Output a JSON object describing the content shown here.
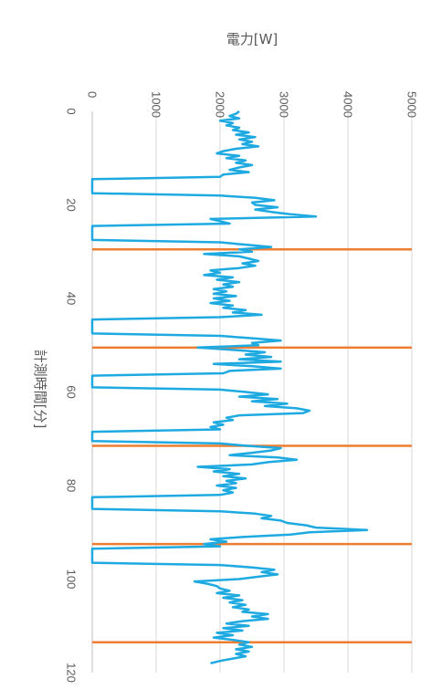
{
  "chart_data": {
    "type": "line",
    "xlabel": "計測時間[分]",
    "ylabel": "電力[W]",
    "xlim": [
      0,
      120
    ],
    "ylim": [
      0,
      5000
    ],
    "x_ticks": [
      0,
      20,
      40,
      60,
      80,
      100,
      120
    ],
    "y_ticks": [
      0,
      1000,
      2000,
      3000,
      4000,
      5000
    ],
    "grid": true,
    "orientation": "rotated-90-clockwise",
    "colors": {
      "series": "#1EAAE1",
      "markers": "#ED7D31",
      "grid": "#D9D9D9",
      "axis": "#BFBFBF"
    },
    "series": [
      {
        "points": [
          [
            0,
            2300
          ],
          [
            0.5,
            2250
          ],
          [
            1,
            2150
          ],
          [
            1.5,
            2300
          ],
          [
            2,
            2000
          ],
          [
            2.5,
            2200
          ],
          [
            3,
            2100
          ],
          [
            3.5,
            2300
          ],
          [
            4,
            2200
          ],
          [
            4.5,
            2450
          ],
          [
            5,
            2250
          ],
          [
            5.5,
            2550
          ],
          [
            6,
            2300
          ],
          [
            6.5,
            2500
          ],
          [
            7,
            2350
          ],
          [
            7.5,
            2600
          ],
          [
            8,
            2250
          ],
          [
            8.5,
            2050
          ],
          [
            9,
            1950
          ],
          [
            9.5,
            2300
          ],
          [
            10,
            2100
          ],
          [
            10.5,
            2400
          ],
          [
            11,
            2250
          ],
          [
            11.5,
            2500
          ],
          [
            12,
            2300
          ],
          [
            12.5,
            2150
          ],
          [
            13,
            2450
          ],
          [
            13.5,
            2050
          ],
          [
            14,
            2000
          ],
          [
            14.5,
            0
          ],
          [
            17.5,
            0
          ],
          [
            18,
            2000
          ],
          [
            18.5,
            2550
          ],
          [
            19,
            2850
          ],
          [
            19.5,
            2500
          ],
          [
            20,
            2550
          ],
          [
            20.5,
            2900
          ],
          [
            21,
            2550
          ],
          [
            21.5,
            2800
          ],
          [
            22,
            3100
          ],
          [
            22.5,
            3500
          ],
          [
            23,
            1850
          ],
          [
            23.5,
            2000
          ],
          [
            24,
            2150
          ],
          [
            24.5,
            0
          ],
          [
            27.5,
            0
          ],
          [
            28,
            2000
          ],
          [
            28.5,
            2400
          ],
          [
            29,
            2800
          ],
          [
            29.5,
            2300
          ],
          [
            30,
            2500
          ],
          [
            30.5,
            1750
          ],
          [
            31,
            2300
          ],
          [
            31.5,
            2450
          ],
          [
            32,
            2600
          ],
          [
            32.5,
            2350
          ],
          [
            33,
            2550
          ],
          [
            33.5,
            2300
          ],
          [
            34,
            1850
          ],
          [
            34.5,
            2000
          ],
          [
            35,
            1750
          ],
          [
            35.5,
            2200
          ],
          [
            36,
            1950
          ],
          [
            36.5,
            2300
          ],
          [
            37,
            2050
          ],
          [
            37.5,
            2200
          ],
          [
            38,
            1900
          ],
          [
            38.5,
            2100
          ],
          [
            39,
            1900
          ],
          [
            39.5,
            2250
          ],
          [
            40,
            1900
          ],
          [
            40.5,
            2150
          ],
          [
            41,
            1850
          ],
          [
            41.5,
            2200
          ],
          [
            42,
            2050
          ],
          [
            42.5,
            2400
          ],
          [
            43,
            2200
          ],
          [
            43.5,
            2650
          ],
          [
            44,
            2000
          ],
          [
            44.5,
            0
          ],
          [
            47.5,
            0
          ],
          [
            48,
            2000
          ],
          [
            48.5,
            2500
          ],
          [
            49,
            2950
          ],
          [
            49.5,
            2500
          ],
          [
            50,
            2600
          ],
          [
            50.5,
            1650
          ],
          [
            51,
            2200
          ],
          [
            51.5,
            2700
          ],
          [
            52,
            2400
          ],
          [
            52.5,
            2800
          ],
          [
            53,
            2300
          ],
          [
            53.5,
            2950
          ],
          [
            54,
            1900
          ],
          [
            54.5,
            2500
          ],
          [
            55,
            2950
          ],
          [
            55.5,
            2150
          ],
          [
            56,
            2050
          ],
          [
            56.5,
            0
          ],
          [
            59,
            0
          ],
          [
            59.5,
            2000
          ],
          [
            60,
            2400
          ],
          [
            60.5,
            2750
          ],
          [
            61,
            2300
          ],
          [
            61.5,
            2900
          ],
          [
            62,
            2500
          ],
          [
            62.5,
            3050
          ],
          [
            63,
            2700
          ],
          [
            63.5,
            3200
          ],
          [
            64,
            3400
          ],
          [
            64.5,
            3300
          ],
          [
            65,
            2300
          ],
          [
            65.5,
            2100
          ],
          [
            66,
            2200
          ],
          [
            66.5,
            1900
          ],
          [
            67,
            2050
          ],
          [
            67.5,
            1850
          ],
          [
            68,
            2000
          ],
          [
            68.5,
            0
          ],
          [
            70.5,
            0
          ],
          [
            71,
            2000
          ],
          [
            71.5,
            2400
          ],
          [
            72,
            2950
          ],
          [
            72.5,
            2800
          ],
          [
            73,
            2500
          ],
          [
            73.5,
            2150
          ],
          [
            74,
            2900
          ],
          [
            74.5,
            3200
          ],
          [
            75,
            2750
          ],
          [
            75.5,
            2500
          ],
          [
            76,
            1650
          ],
          [
            76.5,
            2150
          ],
          [
            77,
            1900
          ],
          [
            77.5,
            2300
          ],
          [
            78,
            2050
          ],
          [
            78.5,
            2400
          ],
          [
            79,
            2100
          ],
          [
            79.5,
            2250
          ],
          [
            80,
            1950
          ],
          [
            80.5,
            2250
          ],
          [
            81,
            2050
          ],
          [
            81.5,
            2200
          ],
          [
            82,
            2000
          ],
          [
            82.5,
            0
          ],
          [
            85,
            0
          ],
          [
            85.5,
            2000
          ],
          [
            86,
            2550
          ],
          [
            86.5,
            2800
          ],
          [
            87,
            2650
          ],
          [
            87.5,
            2950
          ],
          [
            88,
            3050
          ],
          [
            88.5,
            3350
          ],
          [
            89,
            3500
          ],
          [
            89.5,
            4300
          ],
          [
            90,
            3400
          ],
          [
            90.5,
            3100
          ],
          [
            91,
            2350
          ],
          [
            91.5,
            1850
          ],
          [
            92,
            2100
          ],
          [
            92.5,
            1750
          ],
          [
            93,
            2000
          ],
          [
            93.5,
            0
          ],
          [
            96.5,
            0
          ],
          [
            97,
            2000
          ],
          [
            97.5,
            2500
          ],
          [
            98,
            2850
          ],
          [
            98.5,
            2650
          ],
          [
            99,
            2900
          ],
          [
            99.5,
            2600
          ],
          [
            100,
            2300
          ],
          [
            100.5,
            1600
          ],
          [
            101,
            1800
          ],
          [
            101.5,
            1950
          ],
          [
            102,
            2000
          ],
          [
            102.5,
            2150
          ],
          [
            103,
            1950
          ],
          [
            103.5,
            2300
          ],
          [
            104,
            2050
          ],
          [
            104.5,
            2350
          ],
          [
            105,
            2150
          ],
          [
            105.5,
            2400
          ],
          [
            106,
            2200
          ],
          [
            106.5,
            2450
          ],
          [
            107,
            2350
          ],
          [
            107.5,
            2750
          ],
          [
            108,
            2500
          ],
          [
            108.5,
            2750
          ],
          [
            109,
            2350
          ],
          [
            109.5,
            2100
          ],
          [
            110,
            2450
          ],
          [
            110.5,
            2050
          ],
          [
            111,
            2350
          ],
          [
            111.5,
            1950
          ],
          [
            112,
            2200
          ],
          [
            112.5,
            1900
          ],
          [
            113,
            2200
          ],
          [
            113.5,
            2450
          ],
          [
            114,
            2300
          ],
          [
            114.5,
            2500
          ],
          [
            115,
            2250
          ],
          [
            115.5,
            2450
          ],
          [
            116,
            2250
          ],
          [
            116.5,
            2400
          ],
          [
            117,
            2200
          ],
          [
            117.5,
            2000
          ],
          [
            118,
            1850
          ]
        ]
      }
    ],
    "markers": [
      29.5,
      50.5,
      71.5,
      92.5,
      113.5
    ]
  }
}
